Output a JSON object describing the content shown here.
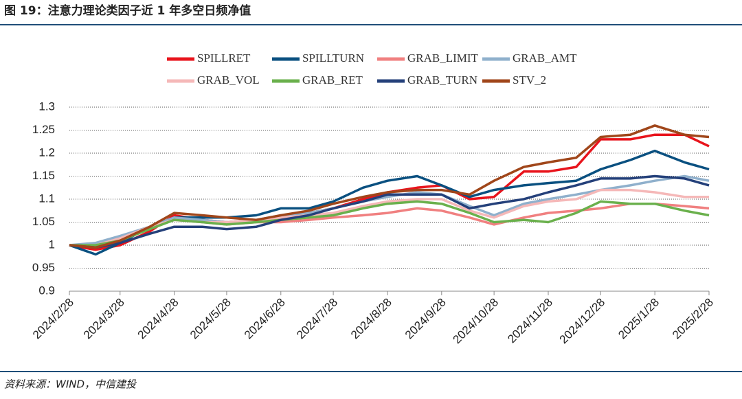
{
  "chart_data": {
    "type": "line",
    "title": "图 19：注意力理论类因子近 1 年多空日频净值",
    "source": "资料来源：WIND，中信建投",
    "x": [
      "2024/2/28",
      "2024/3/14",
      "2024/3/28",
      "2024/4/14",
      "2024/4/28",
      "2024/5/14",
      "2024/5/28",
      "2024/6/14",
      "2024/6/28",
      "2024/7/14",
      "2024/7/28",
      "2024/8/14",
      "2024/8/28",
      "2024/9/14",
      "2024/9/28",
      "2024/10/14",
      "2024/10/28",
      "2024/11/14",
      "2024/11/28",
      "2024/12/14",
      "2024/12/28",
      "2025/1/14",
      "2025/1/28",
      "2025/2/14",
      "2025/2/28"
    ],
    "xticks": [
      "2024/2/28",
      "2024/3/28",
      "2024/4/28",
      "2024/5/28",
      "2024/6/28",
      "2024/7/28",
      "2024/8/28",
      "2024/9/28",
      "2024/10/28",
      "2024/11/28",
      "2024/12/28",
      "2025/1/28",
      "2025/2/28"
    ],
    "ylim": [
      0.9,
      1.3
    ],
    "yticks": [
      0.9,
      0.95,
      1,
      1.05,
      1.1,
      1.15,
      1.2,
      1.25,
      1.3
    ],
    "grid": true,
    "series": [
      {
        "name": "SPILLRET",
        "color": "#e8141c",
        "values": [
          1.0,
          0.99,
          1.0,
          1.03,
          1.065,
          1.055,
          1.05,
          1.055,
          1.06,
          1.07,
          1.08,
          1.1,
          1.115,
          1.125,
          1.13,
          1.1,
          1.105,
          1.16,
          1.16,
          1.17,
          1.23,
          1.23,
          1.24,
          1.24,
          1.215
        ]
      },
      {
        "name": "SPILLTURN",
        "color": "#0a5080",
        "values": [
          1.0,
          0.98,
          1.005,
          1.04,
          1.06,
          1.06,
          1.06,
          1.065,
          1.08,
          1.08,
          1.095,
          1.125,
          1.14,
          1.15,
          1.13,
          1.105,
          1.12,
          1.13,
          1.135,
          1.14,
          1.165,
          1.185,
          1.205,
          1.18,
          1.165
        ]
      },
      {
        "name": "GRAB_LIMIT",
        "color": "#f08080",
        "values": [
          1.0,
          1.0,
          1.01,
          1.04,
          1.055,
          1.05,
          1.045,
          1.05,
          1.05,
          1.055,
          1.06,
          1.065,
          1.07,
          1.08,
          1.075,
          1.06,
          1.045,
          1.06,
          1.07,
          1.075,
          1.08,
          1.09,
          1.09,
          1.085,
          1.08
        ]
      },
      {
        "name": "GRAB_AMT",
        "color": "#8fb0cc",
        "values": [
          1.0,
          1.005,
          1.02,
          1.04,
          1.06,
          1.055,
          1.05,
          1.055,
          1.065,
          1.07,
          1.08,
          1.095,
          1.105,
          1.115,
          1.11,
          1.085,
          1.065,
          1.09,
          1.1,
          1.11,
          1.12,
          1.13,
          1.14,
          1.15,
          1.14
        ]
      },
      {
        "name": "GRAB_VOL",
        "color": "#f5b8b8",
        "values": [
          1.0,
          1.0,
          1.015,
          1.04,
          1.055,
          1.05,
          1.05,
          1.055,
          1.06,
          1.065,
          1.07,
          1.085,
          1.095,
          1.1,
          1.1,
          1.075,
          1.06,
          1.085,
          1.095,
          1.1,
          1.12,
          1.12,
          1.115,
          1.105,
          1.105
        ]
      },
      {
        "name": "GRAB_RET",
        "color": "#6ab04c",
        "values": [
          1.0,
          1.0,
          1.01,
          1.035,
          1.055,
          1.05,
          1.045,
          1.05,
          1.055,
          1.06,
          1.065,
          1.08,
          1.09,
          1.095,
          1.09,
          1.07,
          1.05,
          1.055,
          1.05,
          1.07,
          1.095,
          1.09,
          1.09,
          1.075,
          1.065
        ]
      },
      {
        "name": "GRAB_TURN",
        "color": "#24407a",
        "values": [
          1.0,
          0.995,
          1.005,
          1.025,
          1.04,
          1.04,
          1.035,
          1.04,
          1.055,
          1.065,
          1.08,
          1.095,
          1.11,
          1.11,
          1.11,
          1.08,
          1.09,
          1.1,
          1.115,
          1.13,
          1.145,
          1.145,
          1.15,
          1.145,
          1.13
        ]
      },
      {
        "name": "STV_2",
        "color": "#a0461a",
        "values": [
          1.0,
          0.995,
          1.01,
          1.04,
          1.07,
          1.065,
          1.06,
          1.055,
          1.065,
          1.075,
          1.09,
          1.105,
          1.115,
          1.12,
          1.12,
          1.11,
          1.14,
          1.17,
          1.18,
          1.19,
          1.235,
          1.24,
          1.26,
          1.24,
          1.235
        ]
      }
    ]
  }
}
